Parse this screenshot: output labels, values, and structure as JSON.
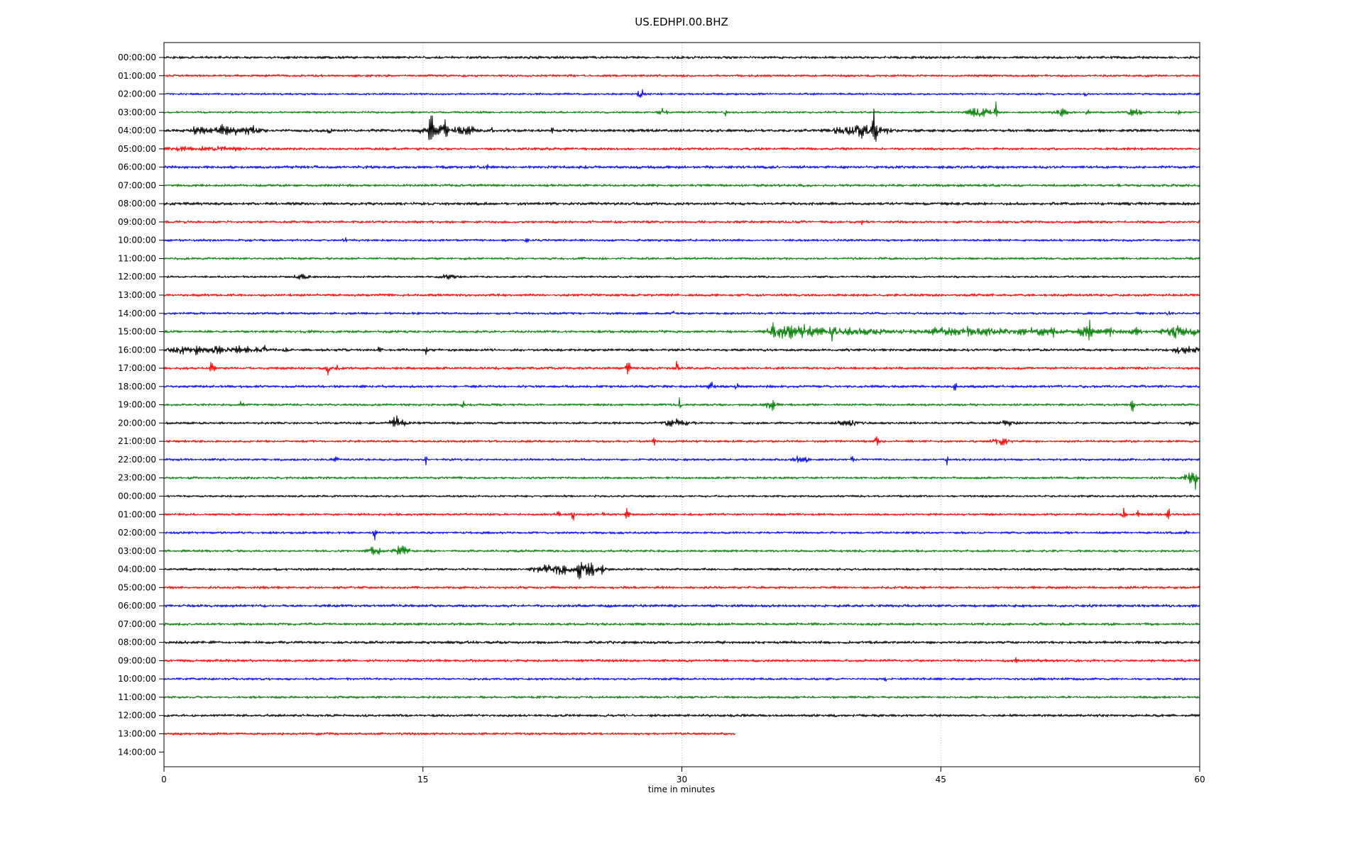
{
  "chart_data": {
    "type": "line",
    "subtype": "helicorder-dayplot",
    "title": "US.EDHPI.00.BHZ",
    "xlabel": "time in minutes",
    "x_range": [
      0,
      60
    ],
    "x_ticks": [
      0,
      15,
      30,
      45,
      60
    ],
    "gridlines_minutes": [
      15,
      30,
      45
    ],
    "grid_on": true,
    "color_cycle": [
      "#000000",
      "#ff0000",
      "#0000ff",
      "#008000"
    ],
    "gridline_color": "#b0b0b0",
    "rows": [
      {
        "label": "00:00:00",
        "noise": 2.2,
        "end": 60,
        "events": []
      },
      {
        "label": "01:00:00",
        "noise": 2.0,
        "end": 60,
        "events": []
      },
      {
        "label": "02:00:00",
        "noise": 1.8,
        "end": 60,
        "events": [
          {
            "t": "s",
            "m": 27.6,
            "a": 10,
            "w": 0.15
          },
          {
            "t": "s",
            "m": 53.4,
            "a": 5,
            "w": 0.1
          }
        ]
      },
      {
        "label": "03:00:00",
        "noise": 1.8,
        "end": 60,
        "events": [
          {
            "t": "b",
            "m": 28.9,
            "a": 5,
            "w": 0.3
          },
          {
            "t": "s",
            "m": 32.5,
            "a": 5,
            "w": 0.1
          },
          {
            "t": "b",
            "m": 47.2,
            "a": 8,
            "w": 0.6
          },
          {
            "t": "s",
            "m": 48.2,
            "a": 16,
            "w": 0.08
          },
          {
            "t": "b",
            "m": 52.0,
            "a": 6,
            "w": 0.4
          },
          {
            "t": "s",
            "m": 53.5,
            "a": 5,
            "w": 0.1
          },
          {
            "t": "b",
            "m": 56.3,
            "a": 6,
            "w": 0.4
          },
          {
            "t": "s",
            "m": 58.8,
            "a": 5,
            "w": 0.1
          }
        ]
      },
      {
        "label": "04:00:00",
        "noise": 2.5,
        "end": 60,
        "events": [
          {
            "t": "b",
            "m": 2.0,
            "a": 6,
            "w": 0.4
          },
          {
            "t": "b",
            "m": 3.6,
            "a": 8,
            "w": 0.8
          },
          {
            "t": "b",
            "m": 5.1,
            "a": 6,
            "w": 0.5
          },
          {
            "t": "s",
            "m": 9.6,
            "a": 5,
            "w": 0.1
          },
          {
            "t": "s",
            "m": 15.45,
            "a": 42,
            "w": 0.1
          },
          {
            "t": "b",
            "m": 15.8,
            "a": 10,
            "w": 0.8
          },
          {
            "t": "s",
            "m": 16.35,
            "a": 22,
            "w": 0.08
          },
          {
            "t": "b",
            "m": 17.5,
            "a": 6,
            "w": 0.6
          },
          {
            "t": "s",
            "m": 19.0,
            "a": 5,
            "w": 0.1
          },
          {
            "t": "s",
            "m": 22.5,
            "a": 4,
            "w": 0.1
          },
          {
            "t": "b",
            "m": 39.7,
            "a": 7,
            "w": 0.8
          },
          {
            "t": "b",
            "m": 40.7,
            "a": 9,
            "w": 0.5
          },
          {
            "t": "s",
            "m": 41.15,
            "a": 50,
            "w": 0.09
          },
          {
            "t": "b",
            "m": 41.6,
            "a": 6,
            "w": 0.4
          }
        ]
      },
      {
        "label": "05:00:00",
        "noise": 2.2,
        "end": 60,
        "events": [
          {
            "t": "b",
            "m": 2.5,
            "a": 2.5,
            "w": 2.5
          }
        ]
      },
      {
        "label": "06:00:00",
        "noise": 2.5,
        "end": 60,
        "events": [
          {
            "t": "s",
            "m": 18.7,
            "a": 4,
            "w": 0.1
          }
        ]
      },
      {
        "label": "07:00:00",
        "noise": 2.2,
        "end": 60,
        "events": []
      },
      {
        "label": "08:00:00",
        "noise": 2.5,
        "end": 60,
        "events": []
      },
      {
        "label": "09:00:00",
        "noise": 2.2,
        "end": 60,
        "events": [
          {
            "t": "s",
            "m": 40.5,
            "a": 4,
            "w": 0.1
          }
        ]
      },
      {
        "label": "10:00:00",
        "noise": 2.0,
        "end": 60,
        "events": [
          {
            "t": "s",
            "m": 10.5,
            "a": 3,
            "w": 0.1
          },
          {
            "t": "s",
            "m": 21.0,
            "a": 3,
            "w": 0.1
          }
        ]
      },
      {
        "label": "11:00:00",
        "noise": 2.0,
        "end": 60,
        "events": []
      },
      {
        "label": "12:00:00",
        "noise": 1.8,
        "end": 60,
        "events": [
          {
            "t": "b",
            "m": 8.0,
            "a": 3,
            "w": 0.5
          },
          {
            "t": "b",
            "m": 16.5,
            "a": 3,
            "w": 0.5
          }
        ]
      },
      {
        "label": "13:00:00",
        "noise": 2.2,
        "end": 60,
        "events": []
      },
      {
        "label": "14:00:00",
        "noise": 2.0,
        "end": 60,
        "events": [
          {
            "t": "s",
            "m": 29.5,
            "a": 3,
            "w": 0.1
          },
          {
            "t": "s",
            "m": 58.2,
            "a": 4,
            "w": 0.1
          }
        ]
      },
      {
        "label": "15:00:00",
        "noise": 2.2,
        "end": 60,
        "events": [
          {
            "t": "s",
            "m": 35.3,
            "a": 34,
            "w": 0.1
          },
          {
            "t": "b",
            "m": 36.0,
            "a": 9,
            "w": 1.0
          },
          {
            "t": "b",
            "m": 37.5,
            "a": 6,
            "w": 1.5
          },
          {
            "t": "s",
            "m": 38.7,
            "a": 12,
            "w": 0.1
          },
          {
            "t": "b",
            "m": 40.5,
            "a": 4,
            "w": 2.0
          },
          {
            "t": "b",
            "m": 45.5,
            "a": 6,
            "w": 1.5
          },
          {
            "t": "b",
            "m": 47.5,
            "a": 5,
            "w": 1.0
          },
          {
            "t": "b",
            "m": 50.5,
            "a": 5,
            "w": 1.5
          },
          {
            "t": "s",
            "m": 51.5,
            "a": 9,
            "w": 0.1
          },
          {
            "t": "b",
            "m": 53.4,
            "a": 8,
            "w": 0.5
          },
          {
            "t": "s",
            "m": 53.6,
            "a": 12,
            "w": 0.08
          },
          {
            "t": "b",
            "m": 54.7,
            "a": 6,
            "w": 0.4
          },
          {
            "t": "b",
            "m": 56.2,
            "a": 6,
            "w": 0.5
          },
          {
            "t": "b",
            "m": 58.6,
            "a": 9,
            "w": 0.7
          },
          {
            "t": "b",
            "m": 59.8,
            "a": 6,
            "w": 0.3
          }
        ]
      },
      {
        "label": "16:00:00",
        "noise": 2.2,
        "end": 60,
        "events": [
          {
            "t": "b",
            "m": 1.0,
            "a": 5,
            "w": 0.8
          },
          {
            "t": "s",
            "m": 1.9,
            "a": 10,
            "w": 0.1
          },
          {
            "t": "b",
            "m": 3.0,
            "a": 5,
            "w": 0.8
          },
          {
            "t": "s",
            "m": 4.3,
            "a": 9,
            "w": 0.1
          },
          {
            "t": "b",
            "m": 5.0,
            "a": 6,
            "w": 0.6
          },
          {
            "t": "s",
            "m": 5.8,
            "a": 8,
            "w": 0.1
          },
          {
            "t": "s",
            "m": 7.0,
            "a": 5,
            "w": 0.1
          },
          {
            "t": "s",
            "m": 12.5,
            "a": 5,
            "w": 0.1
          },
          {
            "t": "s",
            "m": 15.2,
            "a": 7,
            "w": 0.1
          },
          {
            "t": "b",
            "m": 58.9,
            "a": 6,
            "w": 0.4
          },
          {
            "t": "b",
            "m": 59.7,
            "a": 6,
            "w": 0.3
          }
        ]
      },
      {
        "label": "17:00:00",
        "noise": 2.2,
        "end": 60,
        "events": [
          {
            "t": "s",
            "m": 2.8,
            "a": 14,
            "w": 0.12
          },
          {
            "t": "s",
            "m": 9.5,
            "a": 9,
            "w": 0.1
          },
          {
            "t": "s",
            "m": 10.0,
            "a": 7,
            "w": 0.1
          },
          {
            "t": "s",
            "m": 26.9,
            "a": 13,
            "w": 0.12
          },
          {
            "t": "s",
            "m": 29.7,
            "a": 12,
            "w": 0.1
          }
        ]
      },
      {
        "label": "18:00:00",
        "noise": 2.2,
        "end": 60,
        "events": [
          {
            "t": "s",
            "m": 31.7,
            "a": 7,
            "w": 0.15
          },
          {
            "t": "s",
            "m": 33.2,
            "a": 14,
            "w": 0.08
          },
          {
            "t": "s",
            "m": 45.8,
            "a": 8,
            "w": 0.1
          },
          {
            "t": "s",
            "m": 53.8,
            "a": 5,
            "w": 0.1
          }
        ]
      },
      {
        "label": "19:00:00",
        "noise": 2.0,
        "end": 60,
        "events": [
          {
            "t": "s",
            "m": 4.5,
            "a": 6,
            "w": 0.1
          },
          {
            "t": "s",
            "m": 17.3,
            "a": 6,
            "w": 0.1
          },
          {
            "t": "s",
            "m": 29.9,
            "a": 18,
            "w": 0.09
          },
          {
            "t": "b",
            "m": 35.2,
            "a": 8,
            "w": 0.3
          },
          {
            "t": "s",
            "m": 56.1,
            "a": 14,
            "w": 0.09
          }
        ]
      },
      {
        "label": "20:00:00",
        "noise": 2.0,
        "end": 60,
        "events": [
          {
            "t": "b",
            "m": 13.5,
            "a": 9,
            "w": 0.4
          },
          {
            "t": "b",
            "m": 29.6,
            "a": 5,
            "w": 0.7
          },
          {
            "t": "b",
            "m": 39.7,
            "a": 5,
            "w": 0.6
          },
          {
            "t": "b",
            "m": 48.8,
            "a": 4,
            "w": 0.4
          },
          {
            "t": "s",
            "m": 59.5,
            "a": 5,
            "w": 0.1
          }
        ]
      },
      {
        "label": "21:00:00",
        "noise": 2.0,
        "end": 60,
        "events": [
          {
            "t": "s",
            "m": 28.4,
            "a": 6,
            "w": 0.1
          },
          {
            "t": "s",
            "m": 41.3,
            "a": 10,
            "w": 0.12
          },
          {
            "t": "b",
            "m": 48.5,
            "a": 7,
            "w": 0.4
          }
        ]
      },
      {
        "label": "22:00:00",
        "noise": 2.0,
        "end": 60,
        "events": [
          {
            "t": "s",
            "m": 10.0,
            "a": 5,
            "w": 0.1
          },
          {
            "t": "s",
            "m": 15.2,
            "a": 7,
            "w": 0.1
          },
          {
            "t": "b",
            "m": 36.9,
            "a": 5,
            "w": 0.4
          },
          {
            "t": "s",
            "m": 39.9,
            "a": 8,
            "w": 0.12
          },
          {
            "t": "s",
            "m": 45.3,
            "a": 11,
            "w": 0.1
          }
        ]
      },
      {
        "label": "23:00:00",
        "noise": 2.0,
        "end": 60,
        "events": [
          {
            "t": "b",
            "m": 59.5,
            "a": 9,
            "w": 0.35
          },
          {
            "t": "s",
            "m": 59.8,
            "a": 16,
            "w": 0.1
          }
        ]
      },
      {
        "label": "00:00:00",
        "noise": 1.8,
        "end": 60,
        "events": []
      },
      {
        "label": "01:00:00",
        "noise": 2.0,
        "end": 60,
        "events": [
          {
            "t": "s",
            "m": 22.8,
            "a": 8,
            "w": 0.12
          },
          {
            "t": "s",
            "m": 23.7,
            "a": 12,
            "w": 0.1
          },
          {
            "t": "s",
            "m": 25.4,
            "a": 4,
            "w": 0.1
          },
          {
            "t": "s",
            "m": 26.8,
            "a": 14,
            "w": 0.12
          },
          {
            "t": "s",
            "m": 55.6,
            "a": 8,
            "w": 0.12
          },
          {
            "t": "s",
            "m": 56.4,
            "a": 6,
            "w": 0.1
          },
          {
            "t": "s",
            "m": 58.2,
            "a": 12,
            "w": 0.1
          }
        ]
      },
      {
        "label": "02:00:00",
        "noise": 2.0,
        "end": 60,
        "events": [
          {
            "t": "s",
            "m": 12.2,
            "a": 10,
            "w": 0.1
          },
          {
            "t": "s",
            "m": 59.2,
            "a": 4,
            "w": 0.1
          }
        ]
      },
      {
        "label": "03:00:00",
        "noise": 2.0,
        "end": 60,
        "events": [
          {
            "t": "b",
            "m": 12.2,
            "a": 10,
            "w": 0.35
          },
          {
            "t": "b",
            "m": 13.8,
            "a": 8,
            "w": 0.4
          }
        ]
      },
      {
        "label": "04:00:00",
        "noise": 2.0,
        "end": 60,
        "events": [
          {
            "t": "b",
            "m": 21.9,
            "a": 6,
            "w": 0.5
          },
          {
            "t": "b",
            "m": 23.0,
            "a": 9,
            "w": 0.6
          },
          {
            "t": "s",
            "m": 24.1,
            "a": 18,
            "w": 0.15
          },
          {
            "t": "b",
            "m": 24.6,
            "a": 10,
            "w": 0.5
          },
          {
            "t": "b",
            "m": 25.3,
            "a": 6,
            "w": 0.4
          }
        ]
      },
      {
        "label": "05:00:00",
        "noise": 2.2,
        "end": 60,
        "events": []
      },
      {
        "label": "06:00:00",
        "noise": 2.4,
        "end": 60,
        "events": []
      },
      {
        "label": "07:00:00",
        "noise": 2.2,
        "end": 60,
        "events": []
      },
      {
        "label": "08:00:00",
        "noise": 2.4,
        "end": 60,
        "events": []
      },
      {
        "label": "09:00:00",
        "noise": 2.2,
        "end": 60,
        "events": [
          {
            "t": "s",
            "m": 49.4,
            "a": 4,
            "w": 0.1
          }
        ]
      },
      {
        "label": "10:00:00",
        "noise": 2.0,
        "end": 60,
        "events": [
          {
            "t": "s",
            "m": 41.8,
            "a": 4,
            "w": 0.1
          }
        ]
      },
      {
        "label": "11:00:00",
        "noise": 2.0,
        "end": 60,
        "events": []
      },
      {
        "label": "12:00:00",
        "noise": 2.2,
        "end": 60,
        "events": []
      },
      {
        "label": "13:00:00",
        "noise": 2.2,
        "end": 33.1,
        "events": []
      },
      {
        "label": "14:00:00",
        "noise": 0,
        "end": 0,
        "events": []
      }
    ]
  }
}
